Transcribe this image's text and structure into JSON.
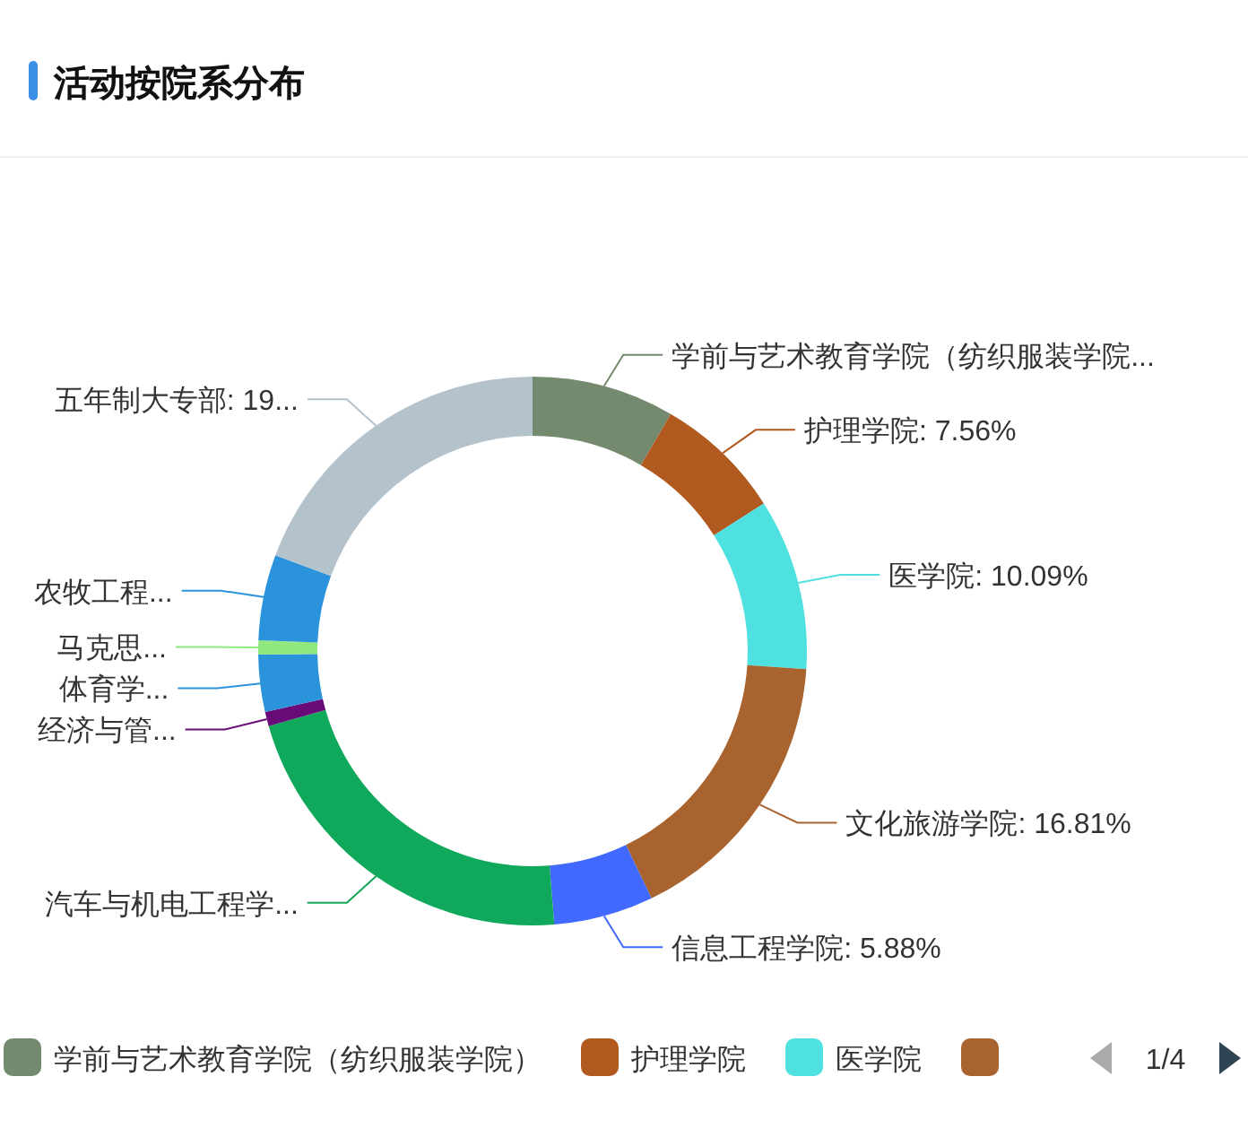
{
  "chart_data": {
    "type": "donut",
    "title": "活动按院系分布",
    "categories": [
      "学前与艺术教育学院（纺织服装学院）",
      "护理学院",
      "医学院",
      null,
      null,
      null,
      null,
      null,
      null,
      null,
      null
    ],
    "values": [
      8.4,
      7.56,
      10.09,
      16.81,
      5.88,
      21.85,
      0.84,
      3.36,
      0.84,
      5.04,
      19.33
    ],
    "colors": [
      "#748a6e",
      "#b05a1f",
      "#4fe0e0",
      "#a9632e",
      "#4169ff",
      "#10a85a",
      "#6a0a78",
      "#2a93dc",
      "#90e87e",
      "#2a93dc",
      "#b4c2cc"
    ],
    "value_labels": [
      "学前与艺术教育学院（纺织服装学院...",
      "护理学院: 7.56%",
      "医学院: 10.09%",
      "文化旅游学院: 16.81%",
      "信息工程学院: 5.88%",
      "汽车与机电工程学...",
      "经济与管...",
      "体育学...",
      "马克思...",
      "农牧工程...",
      "五年制大专部: 19..."
    ],
    "legend": "bottom",
    "annotations": [
      "1/4"
    ]
  }
}
